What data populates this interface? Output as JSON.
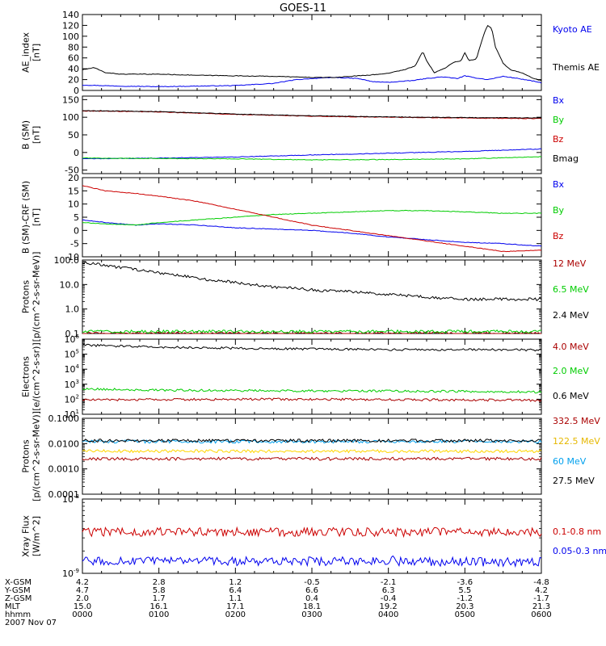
{
  "title": "GOES-11",
  "chart_data": [
    {
      "type": "line",
      "ylabel": "AE_index [nT]",
      "scale": "linear",
      "ylim": [
        0,
        140
      ],
      "ticks": [
        0,
        20,
        40,
        60,
        80,
        100,
        120,
        140
      ],
      "tick_labels": [
        "0",
        "20",
        "40",
        "60",
        "80",
        "100",
        "120",
        "140"
      ],
      "series": [
        {
          "name": "Kyoto AE",
          "color": "#0000ee",
          "points": [
            [
              0,
              10
            ],
            [
              0.5,
              8
            ],
            [
              1,
              7
            ],
            [
              1.5,
              8
            ],
            [
              2,
              9
            ],
            [
              2.5,
              13
            ],
            [
              2.8,
              20
            ],
            [
              3,
              22
            ],
            [
              3.3,
              24
            ],
            [
              3.6,
              22
            ],
            [
              3.8,
              16
            ],
            [
              4,
              15
            ],
            [
              4.3,
              18
            ],
            [
              4.5,
              22
            ],
            [
              4.7,
              25
            ],
            [
              4.9,
              22
            ],
            [
              5,
              27
            ],
            [
              5.1,
              24
            ],
            [
              5.3,
              20
            ],
            [
              5.5,
              26
            ],
            [
              5.7,
              22
            ],
            [
              5.9,
              17
            ],
            [
              6,
              14
            ]
          ]
        },
        {
          "name": "Themis AE",
          "color": "#000000",
          "points": [
            [
              0,
              38
            ],
            [
              0.15,
              42
            ],
            [
              0.3,
              33
            ],
            [
              0.5,
              30
            ],
            [
              1,
              30
            ],
            [
              1.5,
              28
            ],
            [
              2,
              27
            ],
            [
              2.5,
              26
            ],
            [
              3,
              24
            ],
            [
              3.3,
              24
            ],
            [
              3.6,
              27
            ],
            [
              3.9,
              30
            ],
            [
              4,
              32
            ],
            [
              4.2,
              38
            ],
            [
              4.35,
              45
            ],
            [
              4.45,
              72
            ],
            [
              4.5,
              55
            ],
            [
              4.6,
              33
            ],
            [
              4.75,
              42
            ],
            [
              4.85,
              52
            ],
            [
              4.95,
              54
            ],
            [
              5,
              70
            ],
            [
              5.05,
              55
            ],
            [
              5.15,
              58
            ],
            [
              5.25,
              105
            ],
            [
              5.3,
              120
            ],
            [
              5.35,
              115
            ],
            [
              5.4,
              80
            ],
            [
              5.5,
              50
            ],
            [
              5.6,
              38
            ],
            [
              5.75,
              32
            ],
            [
              5.9,
              22
            ],
            [
              6,
              18
            ]
          ]
        }
      ]
    },
    {
      "type": "line",
      "ylabel": "B (SM) [nT]",
      "scale": "linear",
      "ylim": [
        -60,
        160
      ],
      "ticks": [
        -50,
        0,
        50,
        100,
        150
      ],
      "tick_labels": [
        "-50",
        "0",
        "50",
        "100",
        "150"
      ],
      "series": [
        {
          "name": "Bx",
          "color": "#0000ee",
          "points": [
            [
              0,
              -18
            ],
            [
              1,
              -16
            ],
            [
              2,
              -13
            ],
            [
              3,
              -7
            ],
            [
              4,
              -2
            ],
            [
              5,
              3
            ],
            [
              6,
              10
            ]
          ]
        },
        {
          "name": "By",
          "color": "#00cc00",
          "points": [
            [
              0,
              -16
            ],
            [
              1,
              -17
            ],
            [
              2,
              -18
            ],
            [
              3,
              -21
            ],
            [
              4,
              -20
            ],
            [
              5,
              -18
            ],
            [
              6,
              -12
            ]
          ]
        },
        {
          "name": "Bz",
          "color": "#cc0000",
          "points": [
            [
              0,
              118
            ],
            [
              1,
              115
            ],
            [
              2,
              108
            ],
            [
              3,
              103
            ],
            [
              4,
              100
            ],
            [
              5,
              98
            ],
            [
              6,
              96
            ]
          ]
        },
        {
          "name": "Bmag",
          "color": "#000000",
          "points": [
            [
              0,
              119
            ],
            [
              1,
              116
            ],
            [
              2,
              109
            ],
            [
              3,
              104
            ],
            [
              4,
              101
            ],
            [
              5,
              99
            ],
            [
              6,
              98
            ]
          ]
        }
      ]
    },
    {
      "type": "line",
      "ylabel": "B (SM)-CRF (SM) [nT]",
      "scale": "linear",
      "ylim": [
        -10,
        20
      ],
      "ticks": [
        -10,
        -5,
        0,
        5,
        10,
        15,
        20
      ],
      "tick_labels": [
        "-10",
        "-5",
        "0",
        "5",
        "10",
        "15",
        "20"
      ],
      "series": [
        {
          "name": "Bx",
          "color": "#0000ee",
          "points": [
            [
              0,
              4
            ],
            [
              0.3,
              3
            ],
            [
              0.7,
              2
            ],
            [
              1,
              2.5
            ],
            [
              1.5,
              2
            ],
            [
              2,
              1
            ],
            [
              2.5,
              0.5
            ],
            [
              3,
              0
            ],
            [
              3.5,
              -1
            ],
            [
              4,
              -2.5
            ],
            [
              4.5,
              -3.5
            ],
            [
              5,
              -4.5
            ],
            [
              5.5,
              -5
            ],
            [
              6,
              -6
            ]
          ]
        },
        {
          "name": "By",
          "color": "#00cc00",
          "points": [
            [
              0,
              3
            ],
            [
              0.3,
              2.5
            ],
            [
              0.7,
              2
            ],
            [
              1,
              3
            ],
            [
              1.5,
              4
            ],
            [
              2,
              5
            ],
            [
              2.5,
              6
            ],
            [
              3,
              6.5
            ],
            [
              3.5,
              7
            ],
            [
              4,
              7.5
            ],
            [
              4.5,
              7.5
            ],
            [
              5,
              7
            ],
            [
              5.5,
              6.5
            ],
            [
              6,
              6.5
            ]
          ]
        },
        {
          "name": "Bz",
          "color": "#cc0000",
          "points": [
            [
              0,
              17
            ],
            [
              0.3,
              15
            ],
            [
              0.7,
              14
            ],
            [
              1,
              13
            ],
            [
              1.5,
              11
            ],
            [
              2,
              8
            ],
            [
              2.5,
              5
            ],
            [
              3,
              2
            ],
            [
              3.5,
              0
            ],
            [
              4,
              -2
            ],
            [
              4.5,
              -4
            ],
            [
              5,
              -6
            ],
            [
              5.5,
              -8
            ],
            [
              6,
              -7.5
            ]
          ]
        }
      ]
    },
    {
      "type": "line",
      "ylabel": "Protons [p/(cm^2-s-sr-MeV)]",
      "scale": "log",
      "ylim": [
        0.1,
        100
      ],
      "ticks": [
        0.1,
        1,
        10,
        100
      ],
      "tick_labels": [
        "0.1",
        "1.0",
        "10.0",
        "100.0"
      ],
      "series": [
        {
          "name": "12 MeV",
          "color": "#aa0000",
          "points": [
            [
              0,
              0.1
            ],
            [
              6,
              0.1
            ]
          ]
        },
        {
          "name": "6.5 MeV",
          "color": "#00cc00",
          "points": [
            [
              0,
              0.12
            ],
            [
              6,
              0.12
            ]
          ]
        },
        {
          "name": "2.4 MeV",
          "color": "#000000",
          "points": [
            [
              0,
              80
            ],
            [
              0.5,
              50
            ],
            [
              1,
              30
            ],
            [
              1.5,
              18
            ],
            [
              2,
              12
            ],
            [
              2.5,
              8
            ],
            [
              3,
              6
            ],
            [
              3.5,
              5
            ],
            [
              4,
              4
            ],
            [
              4.5,
              3
            ],
            [
              5,
              2.5
            ],
            [
              5.5,
              2.5
            ],
            [
              6,
              2.5
            ]
          ]
        }
      ]
    },
    {
      "type": "line",
      "ylabel": "Electrons [e/(cm^2-s-sr)]",
      "scale": "log",
      "ylim": [
        10,
        1000000
      ],
      "ticks": [
        10,
        100,
        1000,
        10000,
        100000,
        1000000
      ],
      "tick_labels": [
        "10^1",
        "10^2",
        "10^3",
        "10^4",
        "10^5",
        "10^6"
      ],
      "series": [
        {
          "name": "4.0 MeV",
          "color": "#aa0000",
          "points": [
            [
              0,
              90
            ],
            [
              1,
              95
            ],
            [
              2,
              100
            ],
            [
              3,
              100
            ],
            [
              4,
              95
            ],
            [
              5,
              90
            ],
            [
              6,
              85
            ]
          ]
        },
        {
          "name": "2.0 MeV",
          "color": "#00cc00",
          "points": [
            [
              0,
              500
            ],
            [
              1,
              400
            ],
            [
              2,
              380
            ],
            [
              3,
              360
            ],
            [
              4,
              350
            ],
            [
              5,
              330
            ],
            [
              6,
              300
            ]
          ]
        },
        {
          "name": "0.6 MeV",
          "color": "#000000",
          "points": [
            [
              0,
              400000
            ],
            [
              1,
              300000
            ],
            [
              2,
              250000
            ],
            [
              3,
              220000
            ],
            [
              4,
              200000
            ],
            [
              5,
              200000
            ],
            [
              6,
              190000
            ]
          ]
        }
      ]
    },
    {
      "type": "line",
      "ylabel": "Protons [p/(cm^2-s-sr-MeV)]",
      "scale": "log",
      "ylim": [
        0.0001,
        0.1
      ],
      "ticks": [
        0.0001,
        0.001,
        0.01,
        0.1
      ],
      "tick_labels": [
        "0.0001",
        "0.0010",
        "0.0100",
        "0.1000"
      ],
      "series": [
        {
          "name": "332.5 MeV",
          "color": "#aa0000",
          "points": [
            [
              0,
              0.0025
            ],
            [
              6,
              0.0025
            ]
          ]
        },
        {
          "name": "122.5 MeV",
          "color": "#ffd700",
          "points": [
            [
              0,
              0.005
            ],
            [
              6,
              0.005
            ]
          ]
        },
        {
          "name": "60 MeV",
          "color": "#00a0ee",
          "points": [
            [
              0,
              0.012
            ],
            [
              6,
              0.012
            ]
          ]
        },
        {
          "name": "27.5 MeV",
          "color": "#000000",
          "points": [
            [
              0,
              0.013
            ],
            [
              6,
              0.013
            ]
          ]
        }
      ]
    },
    {
      "type": "line",
      "ylabel": "Xray Flux [W/m^2]",
      "scale": "log",
      "ylim": [
        1e-09,
        1e-08
      ],
      "ticks": [
        1e-09,
        1e-08
      ],
      "tick_labels": [
        "10^-9",
        "10^-8"
      ],
      "series": [
        {
          "name": "0.1-0.8 nm",
          "color": "#cc0000",
          "points": [
            [
              0,
              3.6e-09
            ],
            [
              6,
              3.6e-09
            ]
          ]
        },
        {
          "name": "0.05-0.3 nm",
          "color": "#0000ee",
          "points": [
            [
              0,
              1.45e-09
            ],
            [
              1,
              1.45e-09
            ],
            [
              2,
              1.45e-09
            ],
            [
              3,
              1.45e-09
            ],
            [
              4,
              1.45e-09
            ],
            [
              4.05,
              1.55e-09
            ],
            [
              4.1,
              1.45e-09
            ],
            [
              5,
              1.43e-09
            ],
            [
              6,
              1.42e-09
            ]
          ]
        }
      ]
    }
  ],
  "footer": {
    "labels": [
      "X-GSM",
      "Y-GSM",
      "Z-GSM",
      "MLT",
      "hhmm",
      "2007 Nov 07"
    ],
    "columns": [
      {
        "hour": 0,
        "values": [
          "4.2",
          "4.7",
          "2.0",
          "15.0",
          "0000"
        ]
      },
      {
        "hour": 1,
        "values": [
          "2.8",
          "5.8",
          "1.7",
          "16.1",
          "0100"
        ]
      },
      {
        "hour": 2,
        "values": [
          "1.2",
          "6.4",
          "1.1",
          "17.1",
          "0200"
        ]
      },
      {
        "hour": 3,
        "values": [
          "-0.5",
          "6.6",
          "0.4",
          "18.1",
          "0300"
        ]
      },
      {
        "hour": 4,
        "values": [
          "-2.1",
          "6.3",
          "-0.4",
          "19.2",
          "0400"
        ]
      },
      {
        "hour": 5,
        "values": [
          "-3.6",
          "5.5",
          "-1.2",
          "20.3",
          "0500"
        ]
      },
      {
        "hour": 6,
        "values": [
          "-4.8",
          "4.2",
          "-1.7",
          "21.3",
          "0600"
        ]
      }
    ]
  }
}
